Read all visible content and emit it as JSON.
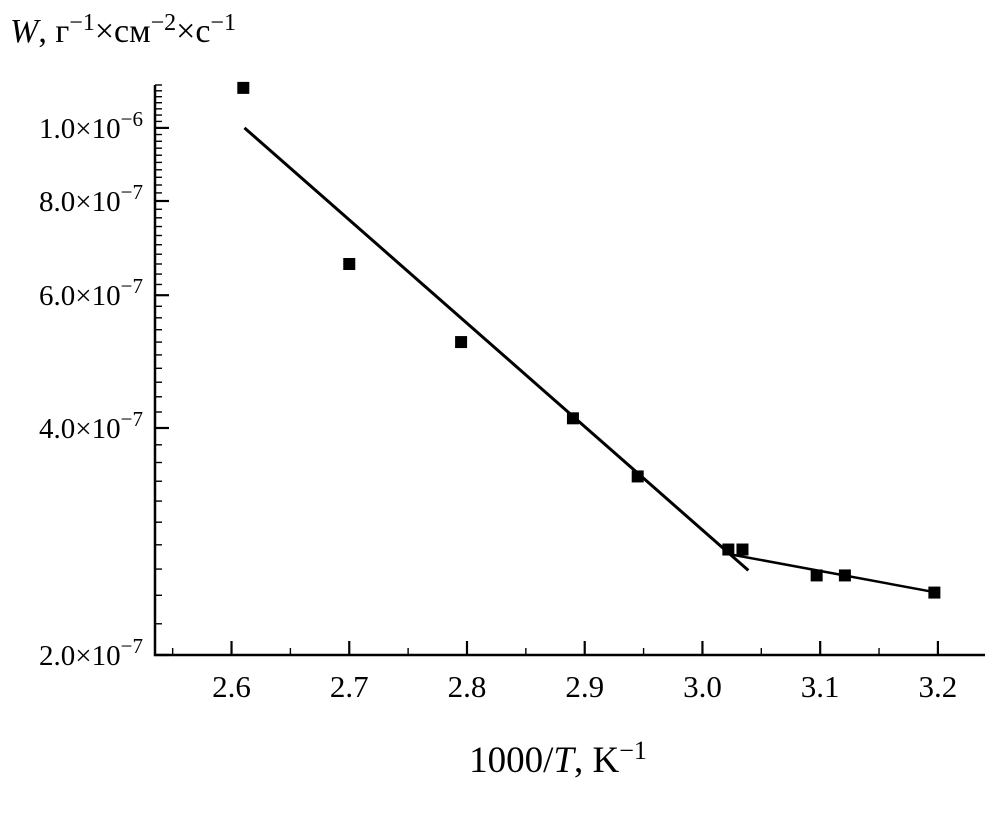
{
  "figure": {
    "background": "#ffffff",
    "axis_color": "#000000",
    "marker_color": "#000000",
    "line_color": "#000000"
  },
  "chart_data": {
    "type": "scatter",
    "title": "",
    "xlabel_plain": "1000/T, K−1",
    "ylabel_plain": "W, г−1×см−2×с−1",
    "xlabel_rich": [
      {
        "t": "1000/"
      },
      {
        "t": "T",
        "italic": true
      },
      {
        "t": ", K"
      },
      {
        "t": "−1",
        "sup": true
      }
    ],
    "ylabel_rich": [
      {
        "t": "W",
        "italic": true
      },
      {
        "t": ", г"
      },
      {
        "t": "−1",
        "sup": true
      },
      {
        "t": "×см"
      },
      {
        "t": "−2",
        "sup": true
      },
      {
        "t": "×с"
      },
      {
        "t": "−1",
        "sup": true
      }
    ],
    "x_axis": {
      "scale": "linear",
      "min": 2.535,
      "max": 3.24,
      "major_ticks": [
        2.6,
        2.7,
        2.8,
        2.9,
        3.0,
        3.1,
        3.2
      ],
      "major_tick_labels": [
        "2.6",
        "2.7",
        "2.8",
        "2.9",
        "3.0",
        "3.1",
        "3.2"
      ],
      "minor_tick_start": 2.55,
      "minor_tick_step": 0.05,
      "minor_tick_end": 3.2
    },
    "y_axis": {
      "scale": "log",
      "min": 2e-07,
      "max": 1.14e-06,
      "major_ticks": [
        2e-07,
        4e-07,
        6e-07,
        8e-07,
        1e-06
      ],
      "major_tick_labels": [
        {
          "mantissa": "2.0×10",
          "exponent": "−7"
        },
        {
          "mantissa": "4.0×10",
          "exponent": "−7"
        },
        {
          "mantissa": "6.0×10",
          "exponent": "−7"
        },
        {
          "mantissa": "8.0×10",
          "exponent": "−7"
        },
        {
          "mantissa": "1.0×10",
          "exponent": "−6"
        }
      ],
      "minor_tick_step": 2e-08
    },
    "series": [
      {
        "name": "measured-rate-points",
        "kind": "scatter",
        "marker": "square",
        "marker_size": 12,
        "points": [
          [
            2.61,
            1.13e-06
          ],
          [
            2.7,
            6.6e-07
          ],
          [
            2.795,
            5.2e-07
          ],
          [
            2.89,
            4.12e-07
          ],
          [
            2.945,
            3.45e-07
          ],
          [
            3.022,
            2.76e-07
          ],
          [
            3.034,
            2.76e-07
          ],
          [
            3.097,
            2.55e-07
          ],
          [
            3.121,
            2.55e-07
          ],
          [
            3.197,
            2.42e-07
          ]
        ]
      },
      {
        "name": "fit-line-high-temp",
        "kind": "line",
        "width": 3,
        "points": [
          [
            2.611,
            1e-06
          ],
          [
            3.039,
            2.59e-07
          ]
        ]
      },
      {
        "name": "fit-line-low-temp",
        "kind": "line",
        "width": 2.5,
        "points": [
          [
            3.018,
            2.73e-07
          ],
          [
            3.199,
            2.42e-07
          ]
        ]
      }
    ]
  }
}
